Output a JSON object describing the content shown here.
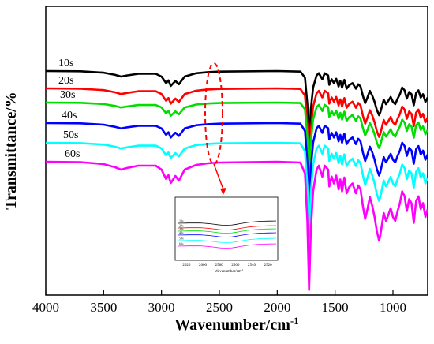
{
  "chart_data": [
    {
      "type": "line",
      "title": "",
      "xlabel": "Wavenumber/cm",
      "xlabel_sup": "-1",
      "ylabel": "Transmittance/%",
      "xlim": [
        4000,
        700
      ],
      "x_reversed": true,
      "x_ticks": [
        "4000",
        "3500",
        "3000",
        "2500",
        "2000",
        "1500",
        "1000"
      ],
      "y_ticks": [],
      "grid": false,
      "legend": "inline labels at upper-left of each trace",
      "series": [
        {
          "name": "10s",
          "color": "#000000",
          "offset": 0
        },
        {
          "name": "20s",
          "color": "#ff0000",
          "offset": 1
        },
        {
          "name": "30s",
          "color": "#00dd00",
          "offset": 2
        },
        {
          "name": "40s",
          "color": "#0000ff",
          "offset": 3
        },
        {
          "name": "50s",
          "color": "#00ffff",
          "offset": 4
        },
        {
          "name": "60s",
          "color": "#ff00ff",
          "offset": 5
        }
      ],
      "profile_points": [
        [
          4000,
          0
        ],
        [
          3700,
          0.5
        ],
        [
          3500,
          3
        ],
        [
          3400,
          7
        ],
        [
          3350,
          10
        ],
        [
          3300,
          8
        ],
        [
          3200,
          5
        ],
        [
          3050,
          5
        ],
        [
          3000,
          10
        ],
        [
          2960,
          22
        ],
        [
          2940,
          17
        ],
        [
          2920,
          27
        ],
        [
          2880,
          18
        ],
        [
          2850,
          24
        ],
        [
          2800,
          10
        ],
        [
          2700,
          4
        ],
        [
          2600,
          2
        ],
        [
          2500,
          1
        ],
        [
          2000,
          0
        ],
        [
          1800,
          1
        ],
        [
          1760,
          12
        ],
        [
          1740,
          60
        ],
        [
          1725,
          130
        ],
        [
          1710,
          70
        ],
        [
          1690,
          30
        ],
        [
          1660,
          8
        ],
        [
          1640,
          4
        ],
        [
          1610,
          15
        ],
        [
          1590,
          4
        ],
        [
          1560,
          8
        ],
        [
          1550,
          25
        ],
        [
          1530,
          15
        ],
        [
          1510,
          22
        ],
        [
          1490,
          14
        ],
        [
          1470,
          28
        ],
        [
          1455,
          18
        ],
        [
          1440,
          30
        ],
        [
          1420,
          16
        ],
        [
          1400,
          32
        ],
        [
          1380,
          26
        ],
        [
          1350,
          22
        ],
        [
          1320,
          32
        ],
        [
          1300,
          24
        ],
        [
          1280,
          28
        ],
        [
          1260,
          45
        ],
        [
          1240,
          58
        ],
        [
          1220,
          48
        ],
        [
          1200,
          36
        ],
        [
          1180,
          44
        ],
        [
          1160,
          55
        ],
        [
          1140,
          70
        ],
        [
          1120,
          80
        ],
        [
          1110,
          75
        ],
        [
          1080,
          52
        ],
        [
          1060,
          60
        ],
        [
          1040,
          54
        ],
        [
          1020,
          47
        ],
        [
          1000,
          56
        ],
        [
          980,
          60
        ],
        [
          960,
          50
        ],
        [
          940,
          42
        ],
        [
          920,
          30
        ],
        [
          900,
          35
        ],
        [
          880,
          50
        ],
        [
          860,
          38
        ],
        [
          840,
          42
        ],
        [
          820,
          62
        ],
        [
          800,
          40
        ],
        [
          780,
          35
        ],
        [
          760,
          48
        ],
        [
          740,
          42
        ],
        [
          720,
          56
        ],
        [
          700,
          48
        ]
      ]
    },
    {
      "type": "line",
      "title": "",
      "xlabel": "Wavenumber/cm",
      "xlabel_sup": "-1",
      "xlim": [
        2630,
        2510
      ],
      "x_ticks": [
        "2620",
        "2600",
        "2580",
        "2560",
        "2540",
        "2520"
      ],
      "series": [
        {
          "name": "10s",
          "color": "#000000"
        },
        {
          "name": "20s",
          "color": "#ff0000"
        },
        {
          "name": "30s",
          "color": "#00dd00"
        },
        {
          "name": "40s",
          "color": "#0000ff"
        },
        {
          "name": "50s",
          "color": "#00ffff"
        },
        {
          "name": "60s",
          "color": "#ff00ff"
        }
      ]
    }
  ]
}
